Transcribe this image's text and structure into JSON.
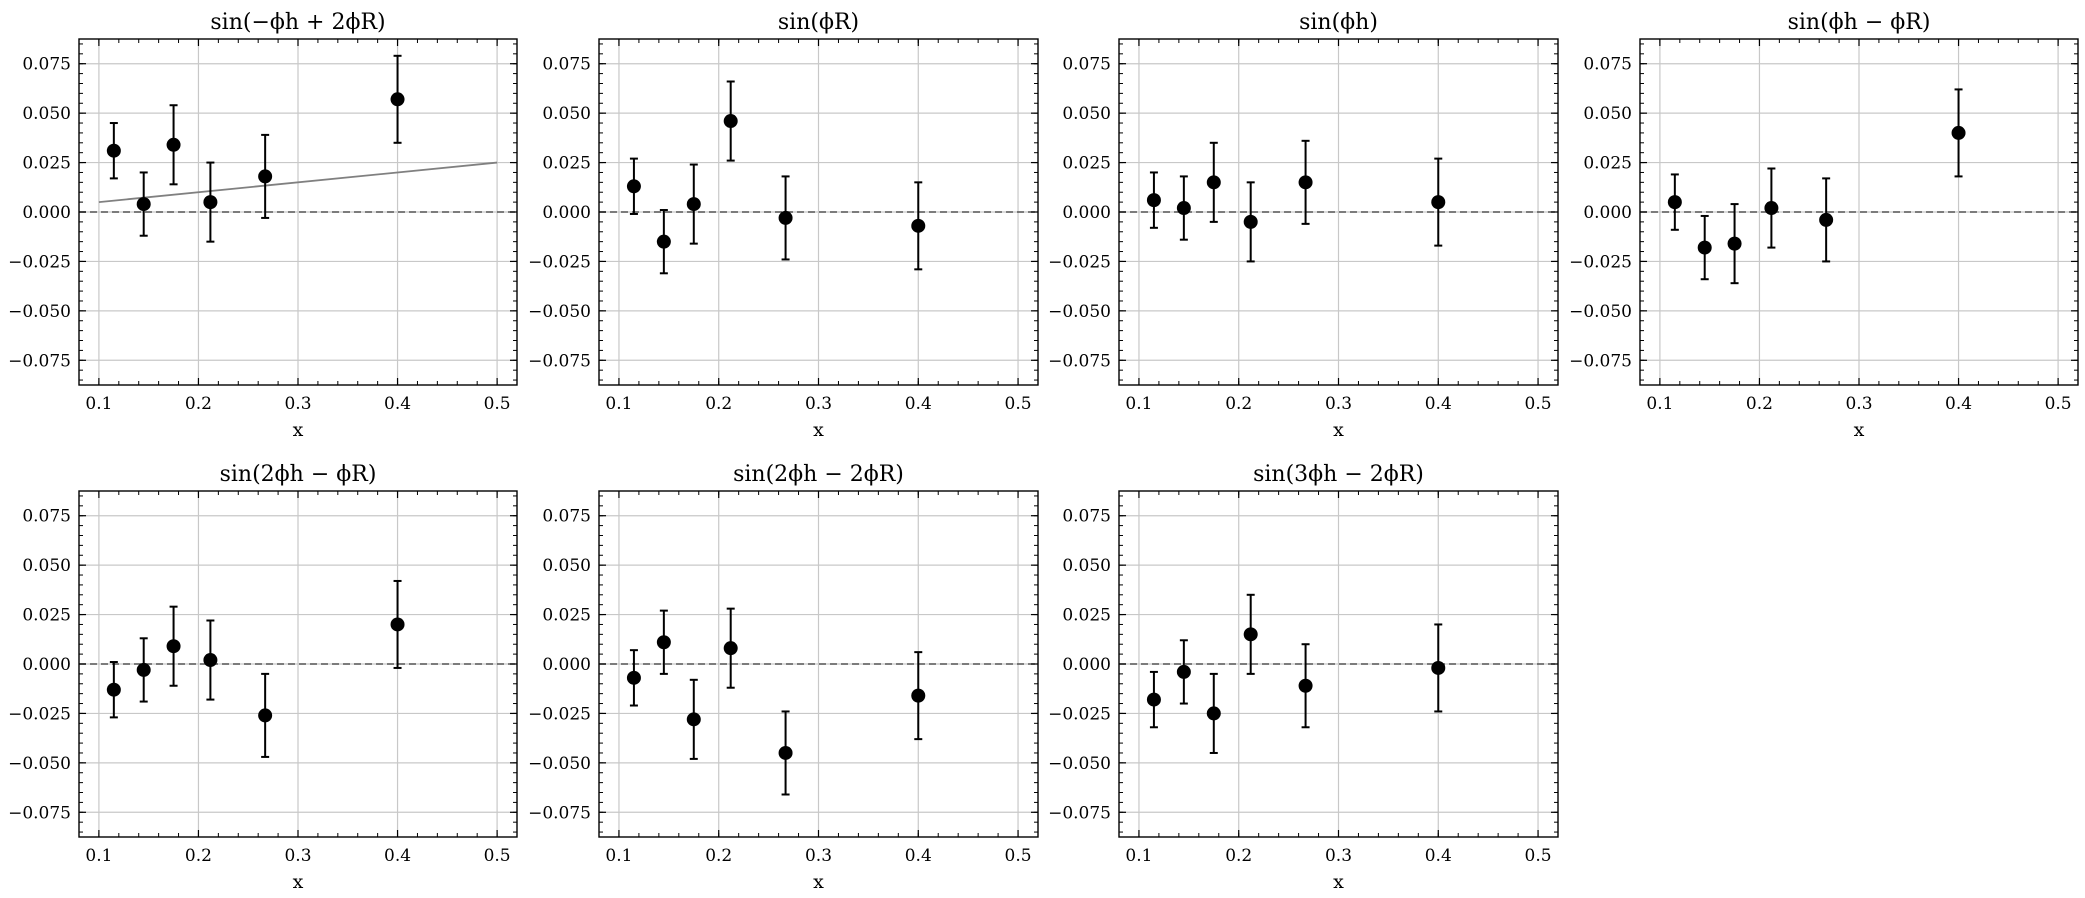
{
  "chart_data": [
    {
      "type": "scatter",
      "title": "sin(−ϕh + 2ϕR)",
      "xlabel": "x",
      "ylabel": "",
      "xlim": [
        0.08,
        0.52
      ],
      "ylim": [
        -0.0875,
        0.0875
      ],
      "xticks": [
        "0.1",
        "0.2",
        "0.3",
        "0.4",
        "0.5"
      ],
      "yticks": [
        "0.075",
        "0.050",
        "0.025",
        "0.000",
        "−0.025",
        "−0.050",
        "−0.075"
      ],
      "grid": true,
      "zero_line": "dashed",
      "fit_line": {
        "x": [
          0.1,
          0.5
        ],
        "y": [
          0.005,
          0.025
        ],
        "color": "#808080"
      },
      "series": [
        {
          "x": [
            0.115,
            0.145,
            0.175,
            0.212,
            0.267,
            0.4
          ],
          "y": [
            0.031,
            0.004,
            0.034,
            0.005,
            0.018,
            0.057
          ],
          "err": [
            0.014,
            0.016,
            0.02,
            0.02,
            0.021,
            0.022
          ]
        }
      ]
    },
    {
      "type": "scatter",
      "title": "sin(ϕR)",
      "xlabel": "x",
      "ylabel": "",
      "xlim": [
        0.08,
        0.52
      ],
      "ylim": [
        -0.0875,
        0.0875
      ],
      "xticks": [
        "0.1",
        "0.2",
        "0.3",
        "0.4",
        "0.5"
      ],
      "yticks": [
        "0.075",
        "0.050",
        "0.025",
        "0.000",
        "−0.025",
        "−0.050",
        "−0.075"
      ],
      "grid": true,
      "zero_line": "dashed",
      "series": [
        {
          "x": [
            0.115,
            0.145,
            0.175,
            0.212,
            0.267,
            0.4
          ],
          "y": [
            0.013,
            -0.015,
            0.004,
            0.046,
            -0.003,
            -0.007
          ],
          "err": [
            0.014,
            0.016,
            0.02,
            0.02,
            0.021,
            0.022
          ]
        }
      ]
    },
    {
      "type": "scatter",
      "title": "sin(ϕh)",
      "xlabel": "x",
      "ylabel": "",
      "xlim": [
        0.08,
        0.52
      ],
      "ylim": [
        -0.0875,
        0.0875
      ],
      "xticks": [
        "0.1",
        "0.2",
        "0.3",
        "0.4",
        "0.5"
      ],
      "yticks": [
        "0.075",
        "0.050",
        "0.025",
        "0.000",
        "−0.025",
        "−0.050",
        "−0.075"
      ],
      "grid": true,
      "zero_line": "dashed",
      "series": [
        {
          "x": [
            0.115,
            0.145,
            0.175,
            0.212,
            0.267,
            0.4
          ],
          "y": [
            0.006,
            0.002,
            0.015,
            -0.005,
            0.015,
            0.005
          ],
          "err": [
            0.014,
            0.016,
            0.02,
            0.02,
            0.021,
            0.022
          ]
        }
      ]
    },
    {
      "type": "scatter",
      "title": "sin(ϕh − ϕR)",
      "xlabel": "x",
      "ylabel": "",
      "xlim": [
        0.08,
        0.52
      ],
      "ylim": [
        -0.0875,
        0.0875
      ],
      "xticks": [
        "0.1",
        "0.2",
        "0.3",
        "0.4",
        "0.5"
      ],
      "yticks": [
        "0.075",
        "0.050",
        "0.025",
        "0.000",
        "−0.025",
        "−0.050",
        "−0.075"
      ],
      "grid": true,
      "zero_line": "dashed",
      "series": [
        {
          "x": [
            0.115,
            0.145,
            0.175,
            0.212,
            0.267,
            0.4
          ],
          "y": [
            0.005,
            -0.018,
            -0.016,
            0.002,
            -0.004,
            0.04
          ],
          "err": [
            0.014,
            0.016,
            0.02,
            0.02,
            0.021,
            0.022
          ]
        }
      ]
    },
    {
      "type": "scatter",
      "title": "sin(2ϕh − ϕR)",
      "xlabel": "x",
      "ylabel": "",
      "xlim": [
        0.08,
        0.52
      ],
      "ylim": [
        -0.0875,
        0.0875
      ],
      "xticks": [
        "0.1",
        "0.2",
        "0.3",
        "0.4",
        "0.5"
      ],
      "yticks": [
        "0.075",
        "0.050",
        "0.025",
        "0.000",
        "−0.025",
        "−0.050",
        "−0.075"
      ],
      "grid": true,
      "zero_line": "dashed",
      "series": [
        {
          "x": [
            0.115,
            0.145,
            0.175,
            0.212,
            0.267,
            0.4
          ],
          "y": [
            -0.013,
            -0.003,
            0.009,
            0.002,
            -0.026,
            0.02
          ],
          "err": [
            0.014,
            0.016,
            0.02,
            0.02,
            0.021,
            0.022
          ]
        }
      ]
    },
    {
      "type": "scatter",
      "title": "sin(2ϕh − 2ϕR)",
      "xlabel": "x",
      "ylabel": "",
      "xlim": [
        0.08,
        0.52
      ],
      "ylim": [
        -0.0875,
        0.0875
      ],
      "xticks": [
        "0.1",
        "0.2",
        "0.3",
        "0.4",
        "0.5"
      ],
      "yticks": [
        "0.075",
        "0.050",
        "0.025",
        "0.000",
        "−0.025",
        "−0.050",
        "−0.075"
      ],
      "grid": true,
      "zero_line": "dashed",
      "series": [
        {
          "x": [
            0.115,
            0.145,
            0.175,
            0.212,
            0.267,
            0.4
          ],
          "y": [
            -0.007,
            0.011,
            -0.028,
            0.008,
            -0.045,
            -0.016
          ],
          "err": [
            0.014,
            0.016,
            0.02,
            0.02,
            0.021,
            0.022
          ]
        }
      ]
    },
    {
      "type": "scatter",
      "title": "sin(3ϕh − 2ϕR)",
      "xlabel": "x",
      "ylabel": "",
      "xlim": [
        0.08,
        0.52
      ],
      "ylim": [
        -0.0875,
        0.0875
      ],
      "xticks": [
        "0.1",
        "0.2",
        "0.3",
        "0.4",
        "0.5"
      ],
      "yticks": [
        "0.075",
        "0.050",
        "0.025",
        "0.000",
        "−0.025",
        "−0.050",
        "−0.075"
      ],
      "grid": true,
      "zero_line": "dashed",
      "series": [
        {
          "x": [
            0.115,
            0.145,
            0.175,
            0.212,
            0.267,
            0.4
          ],
          "y": [
            -0.018,
            -0.004,
            -0.025,
            0.015,
            -0.011,
            -0.002
          ],
          "err": [
            0.014,
            0.016,
            0.02,
            0.02,
            0.021,
            0.022
          ]
        }
      ]
    }
  ]
}
